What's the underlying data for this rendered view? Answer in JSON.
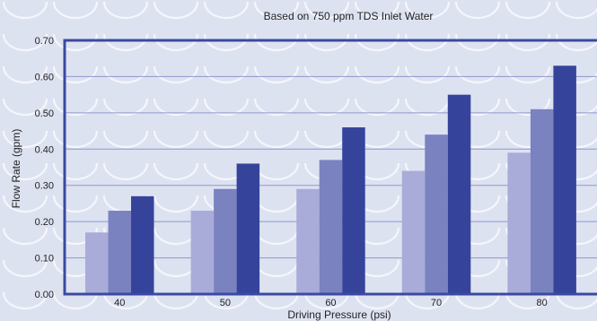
{
  "chart_data": {
    "type": "bar",
    "title": "Based on 750 ppm TDS Inlet Water",
    "xlabel": "Driving Pressure (psi)",
    "ylabel": "Flow Rate (gpm)",
    "categories": [
      "40",
      "50",
      "60",
      "70",
      "80"
    ],
    "ylim": [
      0,
      0.7
    ],
    "yticks": [
      "0.00",
      "0.10",
      "0.20",
      "0.30",
      "0.40",
      "0.50",
      "0.60",
      "0.70"
    ],
    "grid": true,
    "legend": "none",
    "series": [
      {
        "values": [
          0.17,
          0.23,
          0.29,
          0.34,
          0.39
        ],
        "color": "#a9acd8"
      },
      {
        "values": [
          0.23,
          0.29,
          0.37,
          0.44,
          0.51
        ],
        "color": "#7a82c0"
      },
      {
        "values": [
          0.27,
          0.36,
          0.46,
          0.55,
          0.63
        ],
        "color": "#35449a"
      }
    ]
  },
  "colors": {
    "background": "#dde2f1",
    "frame": "#3a4aa0",
    "wave_pattern": "#ffffff"
  }
}
